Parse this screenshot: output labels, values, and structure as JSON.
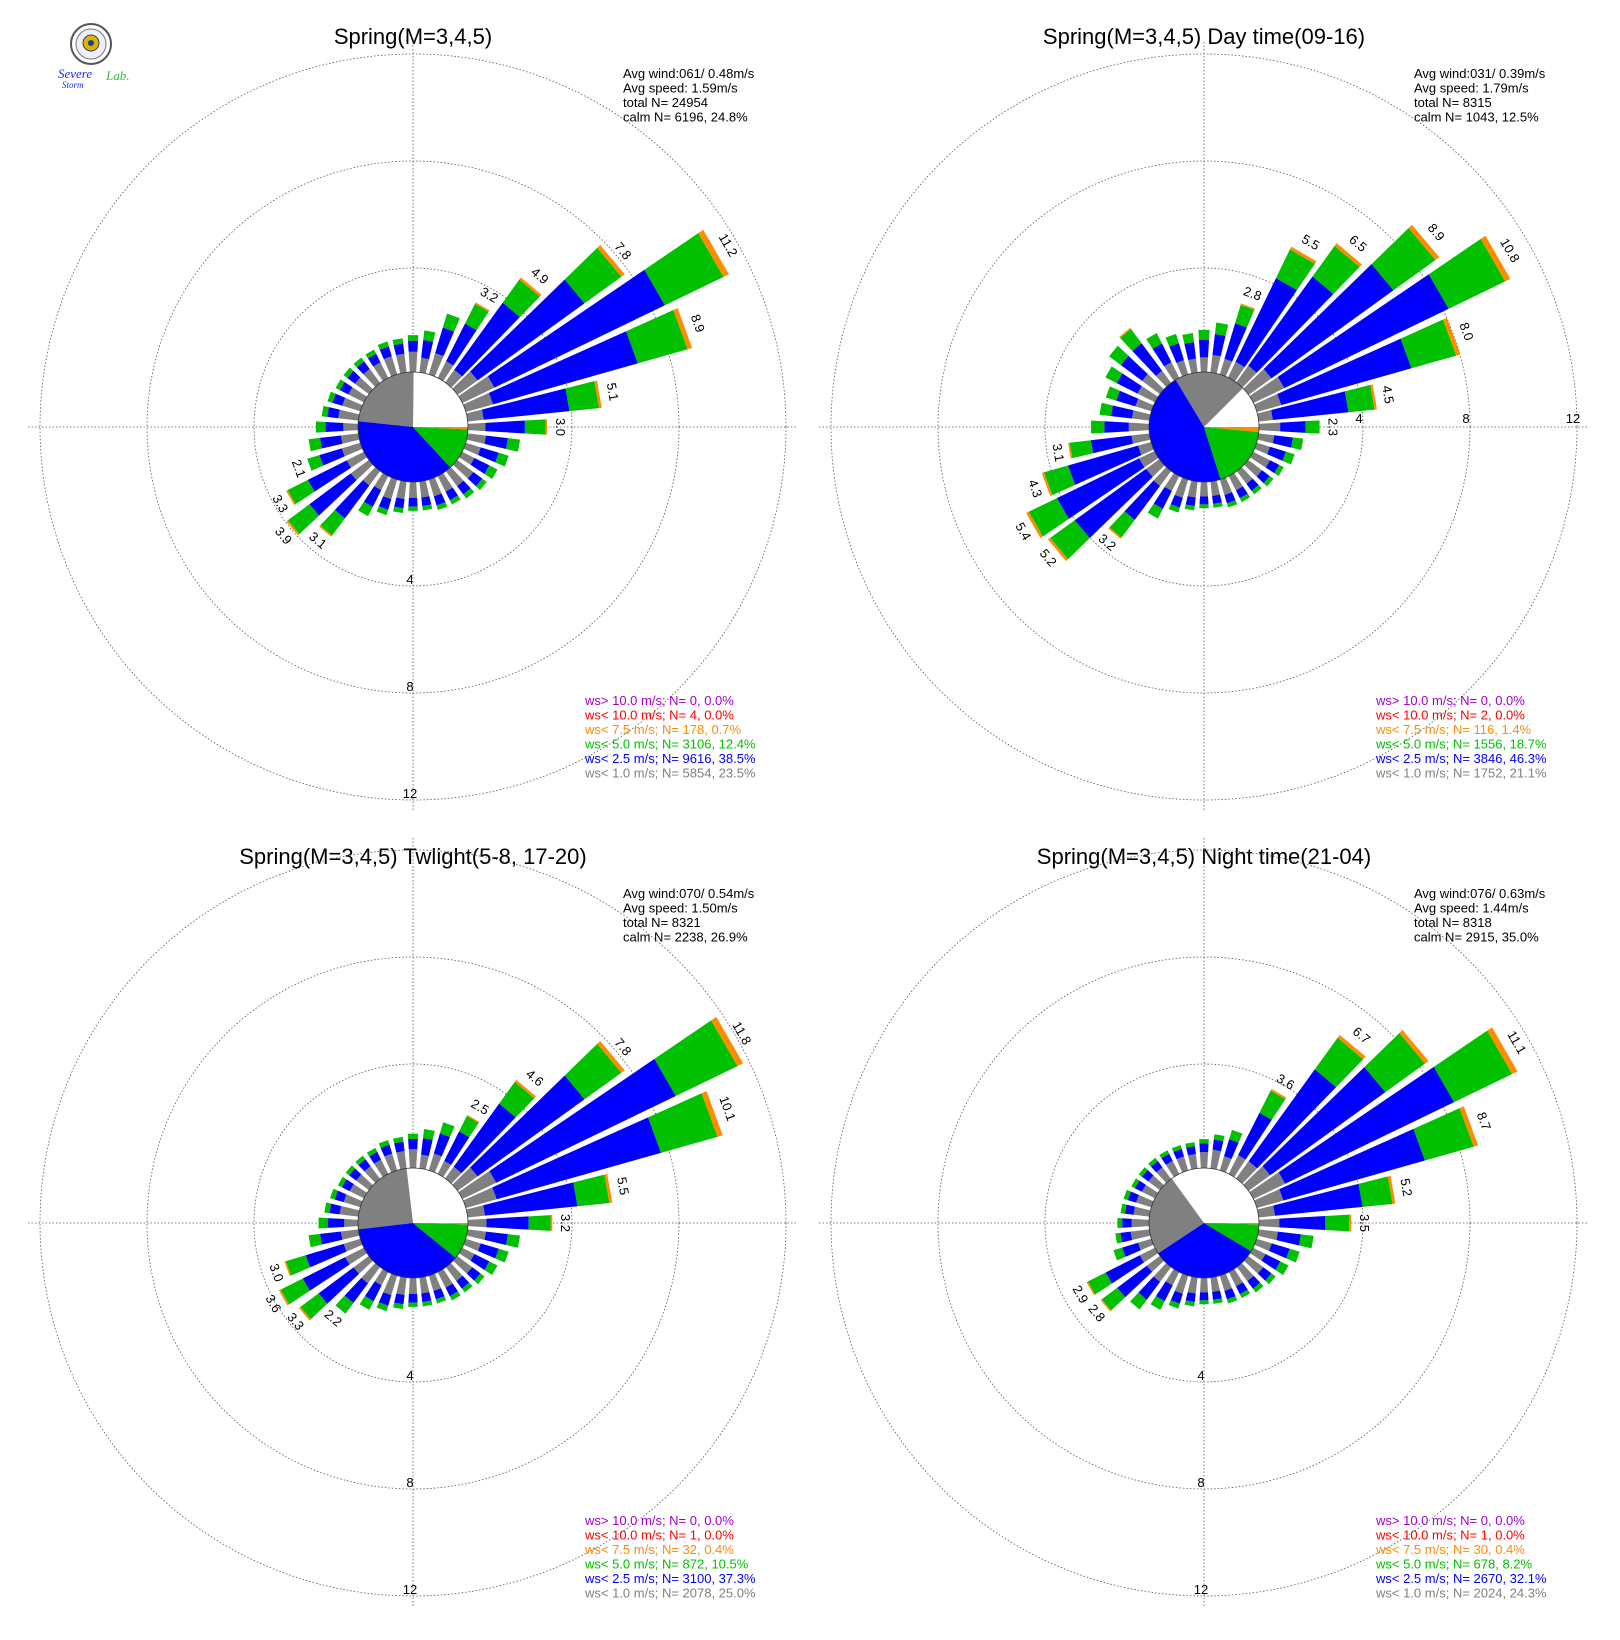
{
  "logo": {
    "text_severe": "Severe",
    "text_storm": "Storm",
    "text_lab": "Lab."
  },
  "colors": {
    "gt10": "#a000d0",
    "lt10": "#ff0000",
    "lt75": "#ff8c00",
    "lt50": "#00c000",
    "lt25": "#0000ff",
    "lt10ms": "#808080",
    "calm": "#ffffff"
  },
  "chart_data": [
    {
      "type": "windrose",
      "title": "Spring(M=3,4,5)",
      "rings": [
        4,
        8,
        12
      ],
      "ring_label_side": "bottom",
      "stats": [
        "Avg wind:061/ 0.48m/s",
        "Avg speed: 1.59m/s",
        "total N=      24954",
        "calm N=   6196,  24.8%"
      ],
      "legend": [
        {
          "label": "ws> 10.0 m/s; N=     0,  0.0%",
          "color": "#a000d0"
        },
        {
          "label": "ws< 10.0 m/s; N=     4,  0.0%",
          "color": "#ff0000"
        },
        {
          "label": "ws<  7.5 m/s; N=   178,  0.7%",
          "color": "#ff8c00"
        },
        {
          "label": "ws<  5.0 m/s; N=  3106, 12.4%",
          "color": "#00c000"
        },
        {
          "label": "ws<  2.5 m/s; N=  9616, 38.5%",
          "color": "#0000ff"
        },
        {
          "label": "ws<  1.0 m/s; N=  5854, 23.5%",
          "color": "#808080"
        }
      ],
      "calm_pie": [
        24.8,
        23.5,
        38.5,
        12.4,
        0.7,
        0.0
      ],
      "directions": [
        {
          "dir": 0,
          "total": 1.4
        },
        {
          "dir": 10,
          "total": 1.6
        },
        {
          "dir": 20,
          "total": 2.4
        },
        {
          "dir": 30,
          "total": 3.2,
          "label": "3.2"
        },
        {
          "dir": 40,
          "total": 4.9,
          "label": "4.9"
        },
        {
          "dir": 50,
          "total": 7.8,
          "label": "7.8"
        },
        {
          "dir": 60,
          "total": 11.2,
          "label": "11.2"
        },
        {
          "dir": 70,
          "total": 8.9,
          "label": "8.9"
        },
        {
          "dir": 80,
          "total": 5.1,
          "label": "5.1"
        },
        {
          "dir": 90,
          "total": 3.0,
          "label": "3.0"
        },
        {
          "dir": 100,
          "total": 2.0
        },
        {
          "dir": 110,
          "total": 1.7
        },
        {
          "dir": 120,
          "total": 1.5
        },
        {
          "dir": 130,
          "total": 1.4
        },
        {
          "dir": 140,
          "total": 1.3
        },
        {
          "dir": 150,
          "total": 1.2
        },
        {
          "dir": 160,
          "total": 1.2
        },
        {
          "dir": 170,
          "total": 1.1
        },
        {
          "dir": 180,
          "total": 1.1
        },
        {
          "dir": 190,
          "total": 1.2
        },
        {
          "dir": 200,
          "total": 1.4
        },
        {
          "dir": 210,
          "total": 1.7
        },
        {
          "dir": 220,
          "total": 3.1,
          "label": "3.1"
        },
        {
          "dir": 230,
          "total": 3.9,
          "label": "3.9"
        },
        {
          "dir": 240,
          "total": 3.3,
          "label": "3.3"
        },
        {
          "dir": 250,
          "total": 2.1,
          "label": "2.1"
        },
        {
          "dir": 260,
          "total": 1.9
        },
        {
          "dir": 270,
          "total": 1.6
        },
        {
          "dir": 280,
          "total": 1.4
        },
        {
          "dir": 290,
          "total": 1.3
        },
        {
          "dir": 300,
          "total": 1.2
        },
        {
          "dir": 310,
          "total": 1.2
        },
        {
          "dir": 320,
          "total": 1.2
        },
        {
          "dir": 330,
          "total": 1.2
        },
        {
          "dir": 340,
          "total": 1.3
        },
        {
          "dir": 350,
          "total": 1.3
        }
      ]
    },
    {
      "type": "windrose",
      "title": "Spring(M=3,4,5) Day time(09-16)",
      "rings": [
        4,
        8,
        12
      ],
      "ring_label_side": "right",
      "stats": [
        "Avg wind:031/ 0.39m/s",
        "Avg speed: 1.79m/s",
        "total N=       8315",
        "calm N=   1043,  12.5%"
      ],
      "legend": [
        {
          "label": "ws> 10.0 m/s; N=     0,  0.0%",
          "color": "#a000d0"
        },
        {
          "label": "ws< 10.0 m/s; N=     2,  0.0%",
          "color": "#ff0000"
        },
        {
          "label": "ws<  7.5 m/s; N=   116,  1.4%",
          "color": "#ff8c00"
        },
        {
          "label": "ws<  5.0 m/s; N=  1556, 18.7%",
          "color": "#00c000"
        },
        {
          "label": "ws<  2.5 m/s; N=  3846, 46.3%",
          "color": "#0000ff"
        },
        {
          "label": "ws<  1.0 m/s; N=  1752, 21.1%",
          "color": "#808080"
        }
      ],
      "calm_pie": [
        12.5,
        21.1,
        46.3,
        18.7,
        1.4,
        0.0
      ],
      "directions": [
        {
          "dir": 0,
          "total": 1.6
        },
        {
          "dir": 10,
          "total": 1.9
        },
        {
          "dir": 20,
          "total": 2.8,
          "label": "2.8"
        },
        {
          "dir": 30,
          "total": 5.5,
          "label": "5.5"
        },
        {
          "dir": 40,
          "total": 6.5,
          "label": "6.5"
        },
        {
          "dir": 50,
          "total": 8.9,
          "label": "8.9"
        },
        {
          "dir": 60,
          "total": 10.8,
          "label": "10.8"
        },
        {
          "dir": 70,
          "total": 8.0,
          "label": "8.0"
        },
        {
          "dir": 80,
          "total": 4.5,
          "label": "4.5"
        },
        {
          "dir": 90,
          "total": 2.3,
          "label": "2.3"
        },
        {
          "dir": 100,
          "total": 1.7
        },
        {
          "dir": 110,
          "total": 1.5
        },
        {
          "dir": 120,
          "total": 1.3
        },
        {
          "dir": 130,
          "total": 1.2
        },
        {
          "dir": 140,
          "total": 1.1
        },
        {
          "dir": 150,
          "total": 1.1
        },
        {
          "dir": 160,
          "total": 1.1
        },
        {
          "dir": 170,
          "total": 1.0
        },
        {
          "dir": 180,
          "total": 1.0
        },
        {
          "dir": 190,
          "total": 1.1
        },
        {
          "dir": 200,
          "total": 1.3
        },
        {
          "dir": 210,
          "total": 1.8
        },
        {
          "dir": 220,
          "total": 3.2,
          "label": "3.2"
        },
        {
          "dir": 230,
          "total": 5.2,
          "label": "5.2"
        },
        {
          "dir": 240,
          "total": 5.4,
          "label": "5.4"
        },
        {
          "dir": 250,
          "total": 4.3,
          "label": "4.3"
        },
        {
          "dir": 260,
          "total": 3.1,
          "label": "3.1"
        },
        {
          "dir": 270,
          "total": 2.2
        },
        {
          "dir": 280,
          "total": 1.9
        },
        {
          "dir": 290,
          "total": 1.8
        },
        {
          "dir": 300,
          "total": 2.1
        },
        {
          "dir": 310,
          "total": 2.4
        },
        {
          "dir": 320,
          "total": 2.6
        },
        {
          "dir": 330,
          "total": 1.9
        },
        {
          "dir": 340,
          "total": 1.6
        },
        {
          "dir": 350,
          "total": 1.5
        }
      ]
    },
    {
      "type": "windrose",
      "title": "Spring(M=3,4,5) Twlight(5-8, 17-20)",
      "rings": [
        4,
        8,
        12
      ],
      "ring_label_side": "bottom",
      "stats": [
        "Avg wind:070/ 0.54m/s",
        "Avg speed: 1.50m/s",
        "total N=       8321",
        "calm N=   2238,  26.9%"
      ],
      "legend": [
        {
          "label": "ws> 10.0 m/s; N=     0,  0.0%",
          "color": "#a000d0"
        },
        {
          "label": "ws< 10.0 m/s; N=     1,  0.0%",
          "color": "#ff0000"
        },
        {
          "label": "ws<  7.5 m/s; N=    32,  0.4%",
          "color": "#ff8c00"
        },
        {
          "label": "ws<  5.0 m/s; N=   872, 10.5%",
          "color": "#00c000"
        },
        {
          "label": "ws<  2.5 m/s; N=  3100, 37.3%",
          "color": "#0000ff"
        },
        {
          "label": "ws<  1.0 m/s; N=  2078, 25.0%",
          "color": "#808080"
        }
      ],
      "calm_pie": [
        26.9,
        25.0,
        37.3,
        10.5,
        0.4,
        0.0
      ],
      "directions": [
        {
          "dir": 0,
          "total": 1.3
        },
        {
          "dir": 10,
          "total": 1.5
        },
        {
          "dir": 20,
          "total": 1.9
        },
        {
          "dir": 30,
          "total": 2.5,
          "label": "2.5"
        },
        {
          "dir": 40,
          "total": 4.6,
          "label": "4.6"
        },
        {
          "dir": 50,
          "total": 7.8,
          "label": "7.8"
        },
        {
          "dir": 60,
          "total": 11.8,
          "label": "11.8"
        },
        {
          "dir": 70,
          "total": 10.1,
          "label": "10.1"
        },
        {
          "dir": 80,
          "total": 5.5,
          "label": "5.5"
        },
        {
          "dir": 90,
          "total": 3.2,
          "label": "3.2"
        },
        {
          "dir": 100,
          "total": 2.0
        },
        {
          "dir": 110,
          "total": 1.7
        },
        {
          "dir": 120,
          "total": 1.5
        },
        {
          "dir": 130,
          "total": 1.3
        },
        {
          "dir": 140,
          "total": 1.2
        },
        {
          "dir": 150,
          "total": 1.2
        },
        {
          "dir": 160,
          "total": 1.1
        },
        {
          "dir": 170,
          "total": 1.1
        },
        {
          "dir": 180,
          "total": 1.1
        },
        {
          "dir": 190,
          "total": 1.2
        },
        {
          "dir": 200,
          "total": 1.4
        },
        {
          "dir": 210,
          "total": 1.6
        },
        {
          "dir": 220,
          "total": 2.2,
          "label": "2.2"
        },
        {
          "dir": 230,
          "total": 3.3,
          "label": "3.3"
        },
        {
          "dir": 240,
          "total": 3.6,
          "label": "3.6"
        },
        {
          "dir": 250,
          "total": 3.0,
          "label": "3.0"
        },
        {
          "dir": 260,
          "total": 1.9
        },
        {
          "dir": 270,
          "total": 1.5
        },
        {
          "dir": 280,
          "total": 1.3
        },
        {
          "dir": 290,
          "total": 1.2
        },
        {
          "dir": 300,
          "total": 1.1
        },
        {
          "dir": 310,
          "total": 1.1
        },
        {
          "dir": 320,
          "total": 1.1
        },
        {
          "dir": 330,
          "total": 1.1
        },
        {
          "dir": 340,
          "total": 1.2
        },
        {
          "dir": 350,
          "total": 1.2
        }
      ]
    },
    {
      "type": "windrose",
      "title": "Spring(M=3,4,5) Night time(21-04)",
      "rings": [
        4,
        8,
        12
      ],
      "ring_label_side": "bottom",
      "stats": [
        "Avg wind:076/ 0.63m/s",
        "Avg speed: 1.44m/s",
        "total N=       8318",
        "calm N=   2915,  35.0%"
      ],
      "legend": [
        {
          "label": "ws> 10.0 m/s; N=     0,  0.0%",
          "color": "#a000d0"
        },
        {
          "label": "ws< 10.0 m/s; N=     1,  0.0%",
          "color": "#ff0000"
        },
        {
          "label": "ws<  7.5 m/s; N=    30,  0.4%",
          "color": "#ff8c00"
        },
        {
          "label": "ws<  5.0 m/s; N=   678,  8.2%",
          "color": "#00c000"
        },
        {
          "label": "ws<  2.5 m/s; N=  2670, 32.1%",
          "color": "#0000ff"
        },
        {
          "label": "ws<  1.0 m/s; N=  2024, 24.3%",
          "color": "#808080"
        }
      ],
      "calm_pie": [
        35.0,
        24.3,
        32.1,
        8.2,
        0.4,
        0.0
      ],
      "directions": [
        {
          "dir": 0,
          "total": 1.1
        },
        {
          "dir": 10,
          "total": 1.3
        },
        {
          "dir": 20,
          "total": 1.6
        },
        {
          "dir": 30,
          "total": 3.6,
          "label": "3.6"
        },
        {
          "dir": 40,
          "total": 6.7,
          "label": "6.7"
        },
        {
          "dir": 50,
          "total": 8.4
        },
        {
          "dir": 60,
          "total": 11.1,
          "label": "11.1"
        },
        {
          "dir": 70,
          "total": 8.7,
          "label": "8.7"
        },
        {
          "dir": 80,
          "total": 5.2,
          "label": "5.2"
        },
        {
          "dir": 90,
          "total": 3.5,
          "label": "3.5"
        },
        {
          "dir": 100,
          "total": 2.1
        },
        {
          "dir": 110,
          "total": 1.7
        },
        {
          "dir": 120,
          "total": 1.5
        },
        {
          "dir": 130,
          "total": 1.3
        },
        {
          "dir": 140,
          "total": 1.2
        },
        {
          "dir": 150,
          "total": 1.1
        },
        {
          "dir": 160,
          "total": 1.1
        },
        {
          "dir": 170,
          "total": 1.0
        },
        {
          "dir": 180,
          "total": 1.0
        },
        {
          "dir": 190,
          "total": 1.1
        },
        {
          "dir": 200,
          "total": 1.3
        },
        {
          "dir": 210,
          "total": 1.6
        },
        {
          "dir": 220,
          "total": 2.0
        },
        {
          "dir": 230,
          "total": 2.8,
          "label": "2.8"
        },
        {
          "dir": 240,
          "total": 2.9,
          "label": "2.9"
        },
        {
          "dir": 250,
          "total": 1.5
        },
        {
          "dir": 260,
          "total": 1.3
        },
        {
          "dir": 270,
          "total": 1.2
        },
        {
          "dir": 280,
          "total": 1.1
        },
        {
          "dir": 290,
          "total": 1.1
        },
        {
          "dir": 300,
          "total": 1.0
        },
        {
          "dir": 310,
          "total": 1.0
        },
        {
          "dir": 320,
          "total": 1.0
        },
        {
          "dir": 330,
          "total": 1.0
        },
        {
          "dir": 340,
          "total": 1.0
        },
        {
          "dir": 350,
          "total": 1.0
        }
      ]
    }
  ]
}
